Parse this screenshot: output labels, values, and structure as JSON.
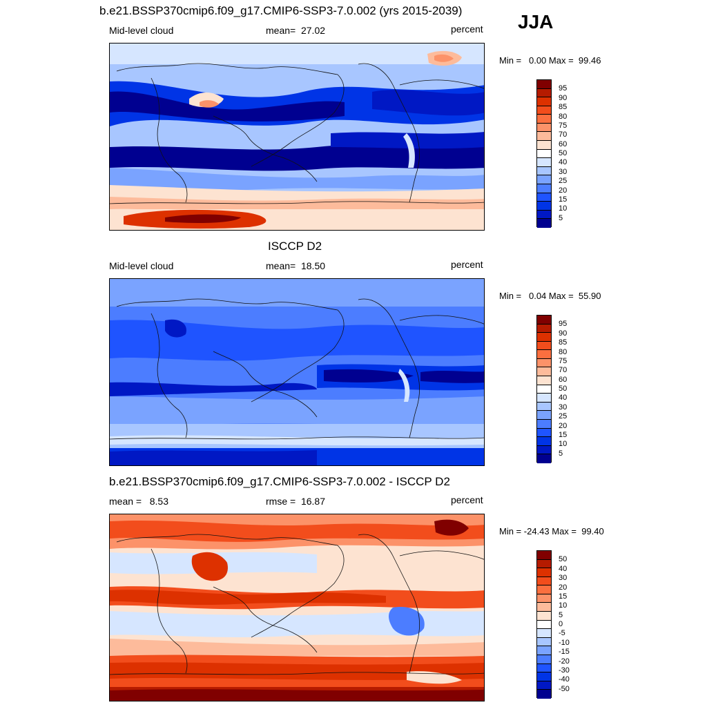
{
  "season": "JJA",
  "panels": [
    {
      "title": "b.e21.BSSP370cmip6.f09_g17.CMIP6-SSP3-7.0.002 (yrs 2015-2039)",
      "left": "Mid-level cloud",
      "center": "mean=  27.02",
      "right": "percent",
      "minmax": "Min =   0.00 Max =  99.46",
      "scale": "abs"
    },
    {
      "title": "ISCCP D2",
      "left": "Mid-level cloud",
      "center": "mean=  18.50",
      "right": "percent",
      "minmax": "Min =   0.04 Max =  55.90",
      "scale": "abs"
    },
    {
      "title": "b.e21.BSSP370cmip6.f09_g17.CMIP6-SSP3-7.0.002 - ISCCP D2",
      "left": "mean =   8.53",
      "center": "rmse =  16.87",
      "right": "percent",
      "minmax": "Min = -24.43 Max =  99.40",
      "scale": "diff"
    }
  ],
  "colorbars": {
    "abs": {
      "labels": [
        "95",
        "90",
        "85",
        "80",
        "75",
        "70",
        "60",
        "50",
        "40",
        "30",
        "25",
        "20",
        "15",
        "10",
        "5"
      ],
      "colors": [
        "#800000",
        "#b51b00",
        "#dd3100",
        "#f24d1c",
        "#fb6f3f",
        "#fc9269",
        "#fdbb9b",
        "#fde3d1",
        "#ffffff",
        "#d6e6ff",
        "#a8c6ff",
        "#7aa3ff",
        "#4c7dff",
        "#1f54ff",
        "#0034e6",
        "#0018c4",
        "#000090"
      ]
    },
    "diff": {
      "labels": [
        "50",
        "40",
        "30",
        "20",
        "15",
        "10",
        "5",
        "0",
        "-5",
        "-10",
        "-15",
        "-20",
        "-30",
        "-40",
        "-50"
      ],
      "colors": [
        "#800000",
        "#b51b00",
        "#dd3100",
        "#f24d1c",
        "#fb6f3f",
        "#fc9269",
        "#fdbb9b",
        "#fde3d1",
        "#ffffff",
        "#d6e6ff",
        "#a8c6ff",
        "#7aa3ff",
        "#4c7dff",
        "#1f54ff",
        "#0034e6",
        "#0018c4",
        "#000090"
      ]
    }
  }
}
